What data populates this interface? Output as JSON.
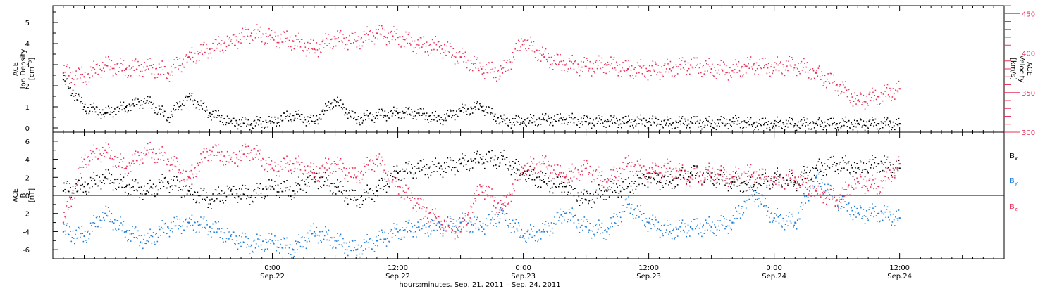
{
  "x_axis": {
    "tick_labels": [
      {
        "time": "0:00",
        "date": "Sep.22"
      },
      {
        "time": "12:00",
        "date": "Sep.22"
      },
      {
        "time": "0:00",
        "date": "Sep.23"
      },
      {
        "time": "12:00",
        "date": "Sep.23"
      },
      {
        "time": "0:00",
        "date": "Sep.24"
      },
      {
        "time": "12:00",
        "date": "Sep.24"
      }
    ],
    "title": "hours:minutes, Sep. 21, 2011 – Sep. 24, 2011"
  },
  "panel1": {
    "left_label": {
      "line1": "ACE",
      "line2": "Ion Density",
      "line3": "[cm⁻³]"
    },
    "right_label": {
      "line1": "ACE",
      "line2": "Velocity",
      "line3": "[km/s]"
    },
    "left_ticks": [
      "0",
      "1",
      "2",
      "3",
      "4",
      "5"
    ],
    "right_ticks": [
      "300",
      "350",
      "400",
      "450"
    ]
  },
  "panel2": {
    "left_label": {
      "line1": "ACE",
      "line2": "B",
      "line3": "[nT]"
    },
    "left_ticks": [
      "-6",
      "-4",
      "-2",
      "0",
      "2",
      "4",
      "6"
    ],
    "legend": [
      {
        "name": "B",
        "sub": "x",
        "color": "#000000"
      },
      {
        "name": "B",
        "sub": "y",
        "color": "#1f7fd8"
      },
      {
        "name": "B",
        "sub": "z",
        "color": "#e8325a"
      }
    ]
  },
  "colors": {
    "density": "#000000",
    "velocity": "#e8325a",
    "bx": "#000000",
    "by": "#1f7fd8",
    "bz": "#e8325a",
    "axis": "#000000",
    "right_axis": "#e8325a"
  },
  "chart_data": [
    {
      "type": "scatter",
      "x_range": [
        "2011-09-21 03:00",
        "2011-09-24 22:00"
      ],
      "series": [
        {
          "name": "Ion Density",
          "axis": "left",
          "ylim": [
            -0.2,
            5.8
          ],
          "x": [
            "2011-09-21 04:00",
            "2011-09-21 06:00",
            "2011-09-21 08:00",
            "2011-09-21 10:00",
            "2011-09-21 12:00",
            "2011-09-21 14:00",
            "2011-09-21 16:00",
            "2011-09-21 18:00",
            "2011-09-21 20:00",
            "2011-09-21 22:00",
            "2011-09-22 00:00",
            "2011-09-22 02:00",
            "2011-09-22 04:00",
            "2011-09-22 06:00",
            "2011-09-22 08:00",
            "2011-09-22 10:00",
            "2011-09-22 12:00",
            "2011-09-22 14:00",
            "2011-09-22 16:00",
            "2011-09-22 18:00",
            "2011-09-22 20:00",
            "2011-09-22 22:00",
            "2011-09-23 00:00",
            "2011-09-23 02:00",
            "2011-09-23 04:00",
            "2011-09-23 06:00",
            "2011-09-23 08:00",
            "2011-09-23 10:00",
            "2011-09-23 12:00",
            "2011-09-23 14:00",
            "2011-09-23 16:00",
            "2011-09-23 18:00",
            "2011-09-23 20:00",
            "2011-09-23 22:00",
            "2011-09-24 00:00",
            "2011-09-24 02:00",
            "2011-09-24 04:00",
            "2011-09-24 06:00",
            "2011-09-24 08:00",
            "2011-09-24 10:00",
            "2011-09-24 12:00"
          ],
          "values": [
            2.3,
            1.0,
            0.7,
            1.0,
            1.3,
            0.5,
            1.5,
            0.7,
            0.3,
            0.2,
            0.3,
            0.6,
            0.3,
            1.3,
            0.4,
            0.6,
            0.7,
            0.7,
            0.4,
            0.8,
            1.0,
            0.3,
            0.3,
            0.4,
            0.4,
            0.3,
            0.3,
            0.3,
            0.3,
            0.2,
            0.3,
            0.2,
            0.3,
            0.2,
            0.2,
            0.2,
            0.2,
            0.2,
            0.2,
            0.2,
            0.2
          ]
        },
        {
          "name": "Velocity",
          "axis": "right",
          "ylim": [
            300,
            460
          ],
          "x": [
            "2011-09-21 04:00",
            "2011-09-21 06:00",
            "2011-09-21 08:00",
            "2011-09-21 10:00",
            "2011-09-21 12:00",
            "2011-09-21 14:00",
            "2011-09-21 16:00",
            "2011-09-21 18:00",
            "2011-09-21 20:00",
            "2011-09-21 22:00",
            "2011-09-22 00:00",
            "2011-09-22 02:00",
            "2011-09-22 04:00",
            "2011-09-22 06:00",
            "2011-09-22 08:00",
            "2011-09-22 10:00",
            "2011-09-22 12:00",
            "2011-09-22 14:00",
            "2011-09-22 16:00",
            "2011-09-22 18:00",
            "2011-09-22 20:00",
            "2011-09-22 22:00",
            "2011-09-23 00:00",
            "2011-09-23 02:00",
            "2011-09-23 04:00",
            "2011-09-23 06:00",
            "2011-09-23 08:00",
            "2011-09-23 10:00",
            "2011-09-23 12:00",
            "2011-09-23 14:00",
            "2011-09-23 16:00",
            "2011-09-23 18:00",
            "2011-09-23 20:00",
            "2011-09-23 22:00",
            "2011-09-24 00:00",
            "2011-09-24 02:00",
            "2011-09-24 04:00",
            "2011-09-24 06:00",
            "2011-09-24 08:00",
            "2011-09-24 10:00",
            "2011-09-24 12:00"
          ],
          "values": [
            375,
            370,
            385,
            380,
            383,
            375,
            395,
            405,
            415,
            425,
            420,
            415,
            405,
            418,
            415,
            425,
            420,
            410,
            408,
            395,
            380,
            375,
            415,
            395,
            385,
            383,
            385,
            380,
            378,
            380,
            385,
            380,
            378,
            385,
            382,
            385,
            375,
            360,
            340,
            345,
            355
          ]
        }
      ]
    },
    {
      "type": "scatter",
      "ylim": [
        -7,
        7
      ],
      "x_range": [
        "2011-09-21 03:00",
        "2011-09-24 22:00"
      ],
      "series": [
        {
          "name": "Bx",
          "x": [
            "2011-09-21 04:00",
            "2011-09-21 06:00",
            "2011-09-21 08:00",
            "2011-09-21 10:00",
            "2011-09-21 12:00",
            "2011-09-21 14:00",
            "2011-09-21 16:00",
            "2011-09-21 18:00",
            "2011-09-21 20:00",
            "2011-09-21 22:00",
            "2011-09-22 00:00",
            "2011-09-22 02:00",
            "2011-09-22 04:00",
            "2011-09-22 06:00",
            "2011-09-22 08:00",
            "2011-09-22 10:00",
            "2011-09-22 12:00",
            "2011-09-22 14:00",
            "2011-09-22 16:00",
            "2011-09-22 18:00",
            "2011-09-22 20:00",
            "2011-09-22 22:00",
            "2011-09-23 00:00",
            "2011-09-23 02:00",
            "2011-09-23 04:00",
            "2011-09-23 06:00",
            "2011-09-23 08:00",
            "2011-09-23 10:00",
            "2011-09-23 12:00",
            "2011-09-23 14:00",
            "2011-09-23 16:00",
            "2011-09-23 18:00",
            "2011-09-23 20:00",
            "2011-09-23 22:00",
            "2011-09-24 00:00",
            "2011-09-24 02:00",
            "2011-09-24 04:00",
            "2011-09-24 06:00",
            "2011-09-24 08:00",
            "2011-09-24 10:00",
            "2011-09-24 12:00"
          ],
          "values": [
            0.5,
            1.0,
            2.0,
            1.0,
            0.5,
            1.5,
            0.5,
            -0.5,
            0.5,
            0.0,
            1.0,
            0.5,
            2.0,
            1.0,
            -0.5,
            0.5,
            2.5,
            3.0,
            3.0,
            3.5,
            4.0,
            4.0,
            2.5,
            1.5,
            1.0,
            -0.5,
            0.5,
            1.0,
            2.0,
            1.5,
            2.5,
            2.0,
            1.5,
            1.0,
            2.0,
            1.5,
            3.0,
            3.5,
            3.0,
            3.5,
            3.0
          ]
        },
        {
          "name": "By",
          "x": [
            "2011-09-21 04:00",
            "2011-09-21 06:00",
            "2011-09-21 08:00",
            "2011-09-21 10:00",
            "2011-09-21 12:00",
            "2011-09-21 14:00",
            "2011-09-21 16:00",
            "2011-09-21 18:00",
            "2011-09-21 20:00",
            "2011-09-21 22:00",
            "2011-09-22 00:00",
            "2011-09-22 02:00",
            "2011-09-22 04:00",
            "2011-09-22 06:00",
            "2011-09-22 08:00",
            "2011-09-22 10:00",
            "2011-09-22 12:00",
            "2011-09-22 14:00",
            "2011-09-22 16:00",
            "2011-09-22 18:00",
            "2011-09-22 20:00",
            "2011-09-22 22:00",
            "2011-09-23 00:00",
            "2011-09-23 02:00",
            "2011-09-23 04:00",
            "2011-09-23 06:00",
            "2011-09-23 08:00",
            "2011-09-23 10:00",
            "2011-09-23 12:00",
            "2011-09-23 14:00",
            "2011-09-23 16:00",
            "2011-09-23 18:00",
            "2011-09-23 20:00",
            "2011-09-23 22:00",
            "2011-09-24 00:00",
            "2011-09-24 02:00",
            "2011-09-24 04:00",
            "2011-09-24 06:00",
            "2011-09-24 08:00",
            "2011-09-24 10:00",
            "2011-09-24 12:00"
          ],
          "values": [
            -4.0,
            -4.5,
            -2.0,
            -4.0,
            -5.0,
            -3.5,
            -3.0,
            -3.5,
            -4.5,
            -5.5,
            -5.0,
            -6.0,
            -4.0,
            -5.0,
            -6.0,
            -5.0,
            -4.0,
            -3.5,
            -3.5,
            -3.0,
            -3.5,
            -2.0,
            -4.5,
            -4.0,
            -2.0,
            -3.5,
            -4.0,
            -1.0,
            -3.0,
            -4.0,
            -3.5,
            -3.5,
            -3.0,
            0.5,
            -2.5,
            -3.0,
            2.0,
            -0.5,
            -2.0,
            -2.0,
            -2.5
          ]
        },
        {
          "name": "Bz",
          "x": [
            "2011-09-21 04:00",
            "2011-09-21 06:00",
            "2011-09-21 08:00",
            "2011-09-21 10:00",
            "2011-09-21 12:00",
            "2011-09-21 14:00",
            "2011-09-21 16:00",
            "2011-09-21 18:00",
            "2011-09-21 20:00",
            "2011-09-21 22:00",
            "2011-09-22 00:00",
            "2011-09-22 02:00",
            "2011-09-22 04:00",
            "2011-09-22 06:00",
            "2011-09-22 08:00",
            "2011-09-22 10:00",
            "2011-09-22 12:00",
            "2011-09-22 14:00",
            "2011-09-22 16:00",
            "2011-09-22 18:00",
            "2011-09-22 20:00",
            "2011-09-22 22:00",
            "2011-09-23 00:00",
            "2011-09-23 02:00",
            "2011-09-23 04:00",
            "2011-09-23 06:00",
            "2011-09-23 08:00",
            "2011-09-23 10:00",
            "2011-09-23 12:00",
            "2011-09-23 14:00",
            "2011-09-23 16:00",
            "2011-09-23 18:00",
            "2011-09-23 20:00",
            "2011-09-23 22:00",
            "2011-09-24 00:00",
            "2011-09-24 02:00",
            "2011-09-24 04:00",
            "2011-09-24 06:00",
            "2011-09-24 08:00",
            "2011-09-24 10:00",
            "2011-09-24 12:00"
          ],
          "values": [
            -3.0,
            4.0,
            5.0,
            3.0,
            5.0,
            4.0,
            2.0,
            5.0,
            4.0,
            5.0,
            3.0,
            3.5,
            2.5,
            3.5,
            2.0,
            4.0,
            1.0,
            -1.0,
            -3.0,
            -4.0,
            1.0,
            -1.5,
            3.0,
            3.5,
            2.0,
            3.0,
            1.5,
            3.5,
            2.5,
            3.0,
            2.0,
            2.5,
            2.0,
            2.5,
            1.5,
            2.0,
            0.5,
            -0.5,
            1.5,
            1.0,
            3.5
          ]
        }
      ]
    }
  ]
}
